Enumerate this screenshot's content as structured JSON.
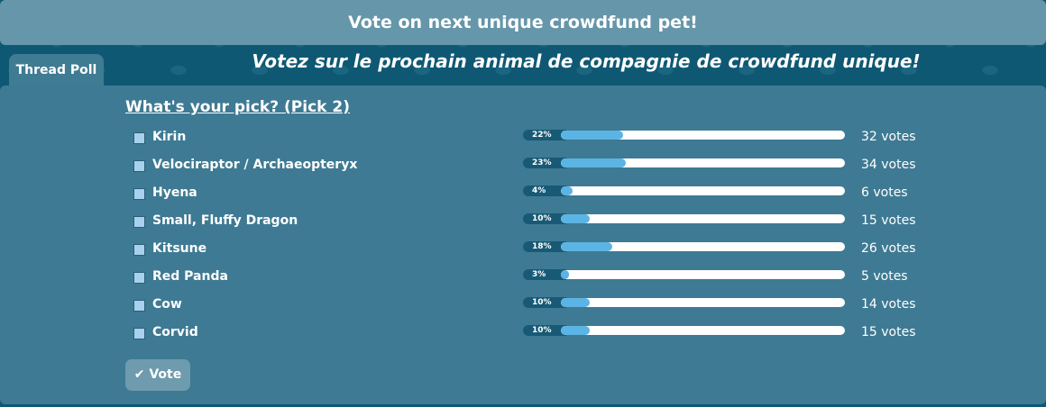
{
  "header": {
    "title": "Vote on next unique crowdfund pet!",
    "subtitle": "Votez sur le prochain animal de compagnie de crowdfund unique!"
  },
  "tab": {
    "label": "Thread Poll"
  },
  "poll": {
    "question": "What's your pick? (Pick 2)",
    "options": [
      {
        "name": "Kirin",
        "percent": 22,
        "percent_label": "22%",
        "votes": "32 votes"
      },
      {
        "name": "Velociraptor / Archaeopteryx",
        "percent": 23,
        "percent_label": "23%",
        "votes": "34 votes"
      },
      {
        "name": "Hyena",
        "percent": 4,
        "percent_label": "4%",
        "votes": "6 votes"
      },
      {
        "name": "Small, Fluffy Dragon",
        "percent": 10,
        "percent_label": "10%",
        "votes": "15 votes"
      },
      {
        "name": "Kitsune",
        "percent": 18,
        "percent_label": "18%",
        "votes": "26 votes"
      },
      {
        "name": "Red Panda",
        "percent": 3,
        "percent_label": "3%",
        "votes": "5 votes"
      },
      {
        "name": "Cow",
        "percent": 10,
        "percent_label": "10%",
        "votes": "14 votes"
      },
      {
        "name": "Corvid",
        "percent": 10,
        "percent_label": "10%",
        "votes": "15 votes"
      }
    ],
    "button": "Vote"
  }
}
